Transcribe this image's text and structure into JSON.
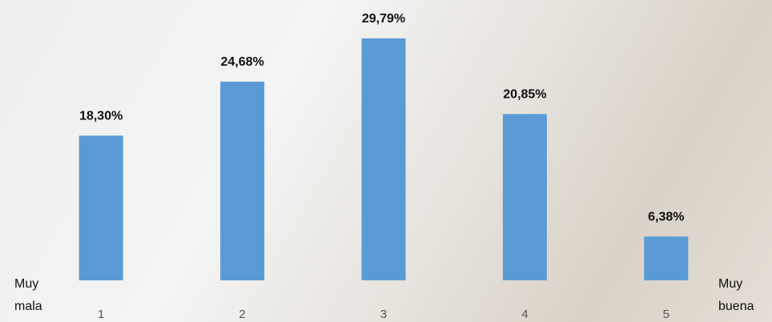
{
  "chart_data": {
    "type": "bar",
    "categories": [
      "1",
      "2",
      "3",
      "4",
      "5"
    ],
    "values": [
      18.3,
      24.68,
      29.79,
      20.85,
      6.38
    ],
    "value_labels": [
      "18,30%",
      "24,68%",
      "29,79%",
      "20,85%",
      "6,38%"
    ],
    "color": "#5b9bd5",
    "ylim": [
      1.2,
      33
    ],
    "annotations": [
      [
        "Muy",
        "mala"
      ],
      [
        "Muy",
        "buena"
      ]
    ]
  }
}
